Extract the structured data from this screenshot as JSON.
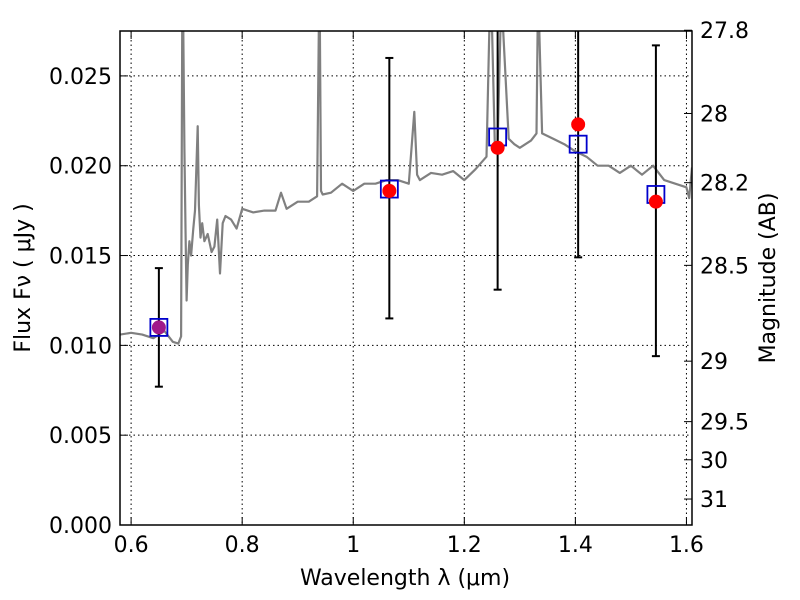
{
  "chart_data": {
    "type": "line",
    "title": "",
    "xlabel": "Wavelength  λ (μm)",
    "ylabel": "Flux  Fν  ( μJy )",
    "ylabel_right": "Magnitude (AB)",
    "xlim": [
      0.58,
      1.61
    ],
    "ylim": [
      0.0,
      0.0275
    ],
    "grid": true,
    "x_ticks": [
      0.6,
      0.8,
      1.0,
      1.2,
      1.4,
      1.6
    ],
    "x_tick_labels": [
      "0.6",
      "0.8",
      "1",
      "1.2",
      "1.4",
      "1.6"
    ],
    "y_ticks": [
      0.0,
      0.005,
      0.01,
      0.015,
      0.02,
      0.025
    ],
    "y_tick_labels": [
      "0.000",
      "0.005",
      "0.010",
      "0.015",
      "0.020",
      "0.025"
    ],
    "right_ticks": [
      27.8,
      28,
      28.2,
      28.5,
      29,
      29.5,
      30,
      31
    ],
    "right_tick_labels": [
      "27.8",
      "28",
      "28.2",
      "28.5",
      "29",
      "29.5",
      "30",
      "31"
    ],
    "colors": {
      "spectrum": "#808080",
      "model_points": "#0000cc",
      "observed_points": "#ff0000",
      "errorbars": "#000000"
    },
    "series": [
      {
        "kind": "spectrum",
        "x": [
          0.58,
          0.6,
          0.62,
          0.64,
          0.66,
          0.675,
          0.685,
          0.69,
          0.692,
          0.694,
          0.696,
          0.698,
          0.7,
          0.702,
          0.705,
          0.708,
          0.712,
          0.715,
          0.72,
          0.722,
          0.725,
          0.728,
          0.732,
          0.738,
          0.745,
          0.75,
          0.755,
          0.76,
          0.765,
          0.77,
          0.78,
          0.79,
          0.8,
          0.82,
          0.84,
          0.86,
          0.87,
          0.88,
          0.9,
          0.92,
          0.935,
          0.938,
          0.94,
          0.942,
          0.945,
          0.96,
          0.98,
          1.0,
          1.02,
          1.04,
          1.06,
          1.08,
          1.1,
          1.11,
          1.115,
          1.12,
          1.14,
          1.16,
          1.18,
          1.2,
          1.22,
          1.24,
          1.245,
          1.25,
          1.255,
          1.26,
          1.265,
          1.27,
          1.28,
          1.29,
          1.3,
          1.31,
          1.32,
          1.33,
          1.332,
          1.335,
          1.34,
          1.36,
          1.38,
          1.4,
          1.42,
          1.44,
          1.46,
          1.48,
          1.5,
          1.52,
          1.54,
          1.56,
          1.58,
          1.6,
          1.605,
          1.61
        ],
        "y": [
          0.0106,
          0.0107,
          0.0106,
          0.0104,
          0.0108,
          0.0102,
          0.0101,
          0.0105,
          0.0275,
          0.0275,
          0.021,
          0.0165,
          0.0125,
          0.0145,
          0.0158,
          0.015,
          0.0165,
          0.0175,
          0.0222,
          0.0178,
          0.016,
          0.0168,
          0.0158,
          0.0162,
          0.0152,
          0.0155,
          0.017,
          0.014,
          0.0168,
          0.0172,
          0.017,
          0.0165,
          0.0176,
          0.0174,
          0.0175,
          0.0175,
          0.0185,
          0.0176,
          0.018,
          0.018,
          0.0183,
          0.0275,
          0.0275,
          0.0186,
          0.0184,
          0.0185,
          0.019,
          0.0186,
          0.019,
          0.019,
          0.0192,
          0.0192,
          0.019,
          0.023,
          0.0195,
          0.0192,
          0.0196,
          0.0195,
          0.0197,
          0.0192,
          0.0198,
          0.0205,
          0.0275,
          0.0275,
          0.021,
          0.0212,
          0.0275,
          0.0275,
          0.0215,
          0.0212,
          0.021,
          0.0212,
          0.0214,
          0.0218,
          0.0275,
          0.0275,
          0.0218,
          0.0215,
          0.0212,
          0.0208,
          0.0205,
          0.02,
          0.02,
          0.0196,
          0.02,
          0.0195,
          0.02,
          0.0192,
          0.019,
          0.0188,
          0.0182,
          0.0199
        ]
      },
      {
        "kind": "model",
        "marker": "open-square",
        "x": [
          0.65,
          1.065,
          1.26,
          1.405,
          1.545
        ],
        "y": [
          0.011,
          0.0187,
          0.0216,
          0.0212,
          0.0184
        ]
      },
      {
        "kind": "observed",
        "marker": "filled-circle",
        "x": [
          0.65,
          1.065,
          1.26,
          1.405,
          1.545
        ],
        "y": [
          0.011,
          0.0186,
          0.021,
          0.0223,
          0.018
        ],
        "yerr_low": [
          0.0077,
          0.0115,
          0.0131,
          0.0149,
          0.0094
        ],
        "yerr_high": [
          0.0143,
          0.026,
          0.0275,
          0.0275,
          0.0267
        ]
      }
    ]
  }
}
